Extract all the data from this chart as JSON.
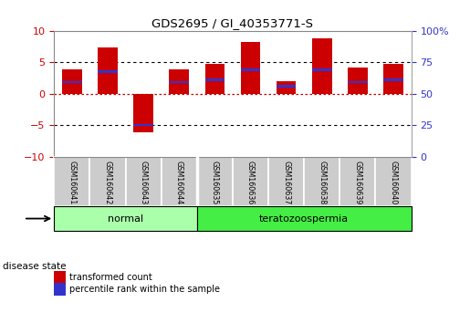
{
  "title": "GDS2695 / GI_40353771-S",
  "samples": [
    "GSM160641",
    "GSM160642",
    "GSM160643",
    "GSM160644",
    "GSM160635",
    "GSM160636",
    "GSM160637",
    "GSM160638",
    "GSM160639",
    "GSM160640"
  ],
  "red_values": [
    3.8,
    7.3,
    -6.1,
    3.8,
    4.7,
    8.2,
    2.0,
    8.8,
    4.2,
    4.7
  ],
  "blue_values": [
    1.8,
    3.5,
    -5.0,
    1.8,
    2.2,
    3.8,
    1.2,
    3.8,
    1.8,
    2.2
  ],
  "disease_groups": [
    {
      "label": "normal",
      "start": 0,
      "end": 4,
      "color": "#aaffaa"
    },
    {
      "label": "teratozoospermia",
      "start": 4,
      "end": 10,
      "color": "#44ee44"
    }
  ],
  "ylim": [
    -10,
    10
  ],
  "yticks_left": [
    -10,
    -5,
    0,
    5,
    10
  ],
  "yticks_right_vals": [
    -10,
    -5,
    0,
    5,
    10
  ],
  "yticks_right_labels": [
    "0",
    "25",
    "50",
    "75",
    "100%"
  ],
  "hlines_dotted": [
    5.0,
    -5.0
  ],
  "hline_red": 0.0,
  "red_color": "#cc0000",
  "blue_color": "#3333cc",
  "bar_width": 0.55,
  "blue_bar_height": 0.35,
  "background_color": "#ffffff",
  "sample_bg_color": "#cccccc",
  "left_axis_color": "#cc0000",
  "right_axis_color": "#3333cc",
  "legend_items": [
    {
      "label": "transformed count",
      "color": "#cc0000"
    },
    {
      "label": "percentile rank within the sample",
      "color": "#3333cc"
    }
  ],
  "disease_state_label": "disease state"
}
